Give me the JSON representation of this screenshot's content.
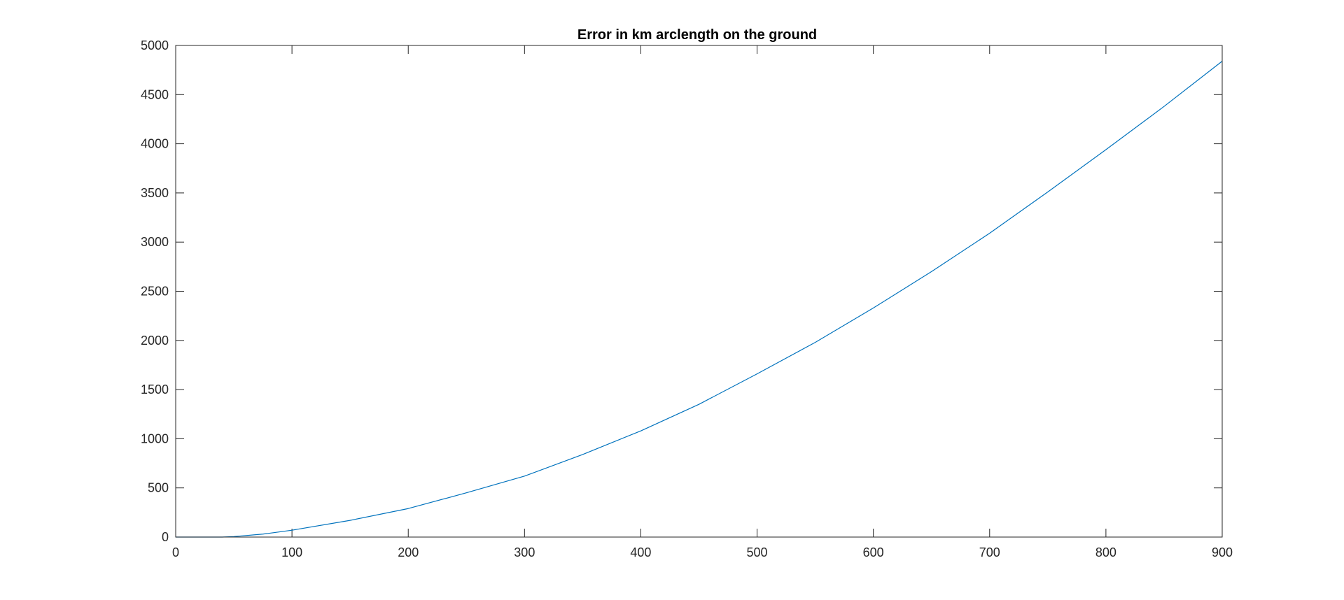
{
  "chart_data": {
    "type": "line",
    "title": "Error in km arclength on the ground",
    "xlabel": "",
    "ylabel": "",
    "xlim": [
      0,
      900
    ],
    "ylim": [
      0,
      5000
    ],
    "xticks": [
      0,
      100,
      200,
      300,
      400,
      500,
      600,
      700,
      800,
      900
    ],
    "yticks": [
      0,
      500,
      1000,
      1500,
      2000,
      2500,
      3000,
      3500,
      4000,
      4500,
      5000
    ],
    "xtick_labels": [
      "0",
      "100",
      "200",
      "300",
      "400",
      "500",
      "600",
      "700",
      "800",
      "900"
    ],
    "ytick_labels": [
      "0",
      "500",
      "1000",
      "1500",
      "2000",
      "2500",
      "3000",
      "3500",
      "4000",
      "4500",
      "5000"
    ],
    "grid": false,
    "series": [
      {
        "color": "#0072BD",
        "x": [
          0,
          25,
          40,
          50,
          75,
          100,
          150,
          200,
          250,
          300,
          350,
          400,
          450,
          500,
          550,
          600,
          650,
          700,
          750,
          800,
          850,
          900
        ],
        "y": [
          0,
          0,
          0,
          5,
          30,
          70,
          170,
          290,
          450,
          620,
          840,
          1080,
          1350,
          1660,
          1980,
          2330,
          2700,
          3090,
          3510,
          3940,
          4380,
          4840
        ]
      }
    ]
  }
}
